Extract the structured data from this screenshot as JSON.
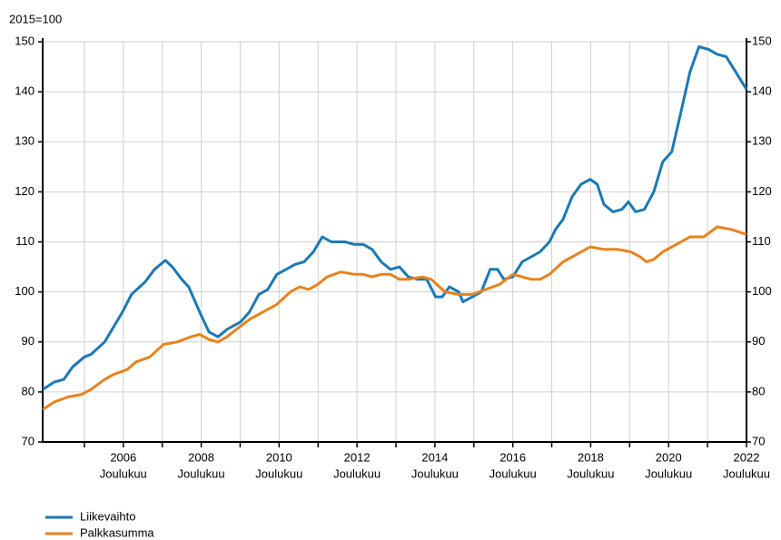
{
  "chart_data": {
    "type": "line",
    "y_label": "2015=100",
    "x_sublabel": "Joulukuu",
    "xlim": [
      2003.93,
      2022
    ],
    "ylim": [
      70,
      150
    ],
    "yticks": [
      70,
      80,
      90,
      100,
      110,
      120,
      130,
      140,
      150
    ],
    "xticks": [
      2006,
      2008,
      2010,
      2012,
      2014,
      2016,
      2018,
      2020,
      2022
    ],
    "xminor_ticks": [
      2005,
      2007,
      2009,
      2011,
      2013,
      2015,
      2017,
      2019,
      2021
    ],
    "grid": true,
    "mirror_y_axis": true,
    "legend": "bottom-left",
    "series": [
      {
        "name": "Liikevaihto",
        "color": "#1a7ab5",
        "x": [
          2003.93,
          2004.23,
          2004.47,
          2004.7,
          2005.0,
          2005.17,
          2005.52,
          2005.75,
          2005.98,
          2006.21,
          2006.56,
          2006.8,
          2007.08,
          2007.26,
          2007.5,
          2007.68,
          2007.96,
          2008.2,
          2008.43,
          2008.66,
          2009.01,
          2009.24,
          2009.48,
          2009.71,
          2009.94,
          2010.18,
          2010.41,
          2010.64,
          2010.88,
          2011.11,
          2011.34,
          2011.69,
          2011.93,
          2012.16,
          2012.39,
          2012.62,
          2012.86,
          2013.09,
          2013.32,
          2013.56,
          2013.79,
          2014.02,
          2014.19,
          2014.37,
          2014.61,
          2014.72,
          2014.96,
          2015.19,
          2015.42,
          2015.61,
          2015.77,
          2016.0,
          2016.24,
          2016.47,
          2016.7,
          2016.94,
          2017.1,
          2017.29,
          2017.52,
          2017.75,
          2017.99,
          2018.17,
          2018.34,
          2018.57,
          2018.8,
          2018.97,
          2019.15,
          2019.38,
          2019.62,
          2019.85,
          2020.08,
          2020.32,
          2020.55,
          2020.78,
          2021.02,
          2021.25,
          2021.48,
          2021.72,
          2022.0
        ],
        "values": [
          80.5,
          82,
          82.5,
          85,
          87,
          87.5,
          90,
          93,
          96,
          99.5,
          102,
          104.5,
          106.3,
          105,
          102.5,
          101,
          96,
          92,
          91,
          92.5,
          94,
          96,
          99.5,
          100.5,
          103.5,
          104.5,
          105.5,
          106,
          108,
          111,
          110,
          110,
          109.5,
          109.5,
          108.5,
          106,
          104.5,
          105,
          103,
          102.5,
          102.5,
          99,
          99,
          101,
          100,
          98,
          99,
          100,
          104.5,
          104.5,
          102.5,
          103,
          106,
          107,
          108,
          110,
          112.5,
          114.5,
          119,
          121.5,
          122.5,
          121.5,
          117.5,
          116,
          116.5,
          118,
          116,
          116.5,
          120,
          126,
          128,
          136,
          144,
          149,
          148.5,
          147.5,
          147,
          144,
          140.5
        ]
      },
      {
        "name": "Palkkasumma",
        "color": "#e8821e",
        "x": [
          2003.93,
          2004.23,
          2004.58,
          2004.93,
          2005.17,
          2005.52,
          2005.75,
          2006.1,
          2006.33,
          2006.68,
          2007.03,
          2007.38,
          2007.73,
          2007.96,
          2008.2,
          2008.43,
          2008.66,
          2008.9,
          2009.24,
          2009.59,
          2009.94,
          2010.29,
          2010.53,
          2010.76,
          2010.99,
          2011.23,
          2011.58,
          2011.93,
          2012.16,
          2012.39,
          2012.62,
          2012.86,
          2013.09,
          2013.32,
          2013.67,
          2013.91,
          2014.26,
          2014.61,
          2014.96,
          2015.31,
          2015.66,
          2016.0,
          2016.24,
          2016.47,
          2016.7,
          2016.94,
          2017.29,
          2017.64,
          2017.99,
          2018.34,
          2018.69,
          2019.03,
          2019.27,
          2019.43,
          2019.62,
          2019.85,
          2020.2,
          2020.55,
          2020.9,
          2021.25,
          2021.6,
          2022.0
        ],
        "values": [
          76.5,
          78,
          79,
          79.5,
          80.5,
          82.5,
          83.5,
          84.5,
          86,
          87,
          89.5,
          90,
          91,
          91.5,
          90.5,
          90,
          91,
          92.5,
          94.5,
          96,
          97.5,
          100,
          101,
          100.5,
          101.5,
          103,
          104,
          103.5,
          103.5,
          103,
          103.5,
          103.5,
          102.5,
          102.5,
          103,
          102.5,
          100,
          99.5,
          99.5,
          100.5,
          101.5,
          103.5,
          103,
          102.5,
          102.5,
          103.5,
          106,
          107.5,
          109,
          108.5,
          108.5,
          108,
          107,
          106,
          106.5,
          108,
          109.5,
          111,
          111,
          113,
          112.5,
          111.5
        ]
      }
    ]
  }
}
